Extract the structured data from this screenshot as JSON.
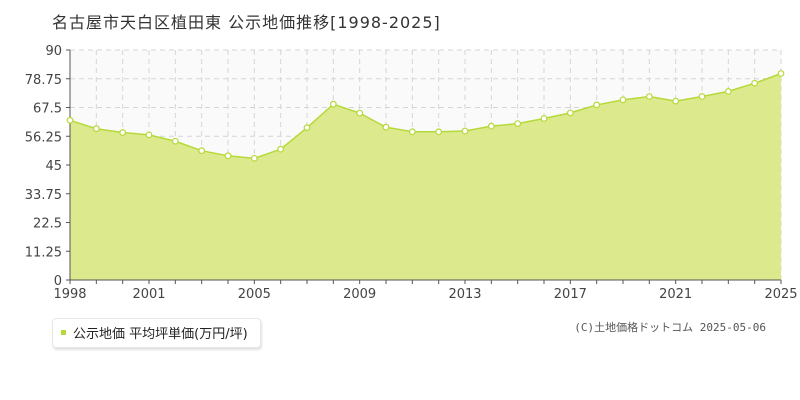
{
  "title": "名古屋市天白区植田東 公示地価推移[1998-2025]",
  "legend": {
    "label": "公示地価 平均坪単価(万円/坪)"
  },
  "copyright": "(C)土地価格ドットコム 2025-05-06",
  "colors": {
    "fill": "#dde98d",
    "line": "#b5d93a",
    "point_fill": "#ffffff",
    "grid": "#d5d5d5"
  },
  "chart_data": {
    "type": "area",
    "title": "名古屋市天白区植田東 公示地価推移[1998-2025]",
    "xlabel": "",
    "ylabel": "",
    "x": [
      1998,
      1999,
      2000,
      2001,
      2002,
      2003,
      2004,
      2005,
      2006,
      2007,
      2008,
      2009,
      2010,
      2011,
      2012,
      2013,
      2014,
      2015,
      2016,
      2017,
      2018,
      2019,
      2020,
      2021,
      2022,
      2023,
      2024,
      2025
    ],
    "series": [
      {
        "name": "公示地価 平均坪単価(万円/坪)",
        "values": [
          62.5,
          59.2,
          57.7,
          56.8,
          54.3,
          50.6,
          48.6,
          47.6,
          51.2,
          59.6,
          68.8,
          65.3,
          59.8,
          58.0,
          58.0,
          58.3,
          60.2,
          61.2,
          63.2,
          65.4,
          68.5,
          70.5,
          71.8,
          70.0,
          71.8,
          73.8,
          77.0,
          80.8
        ]
      }
    ],
    "xlim": [
      1998,
      2025
    ],
    "ylim": [
      0,
      90
    ],
    "yticks": [
      0,
      11.25,
      22.5,
      33.75,
      45,
      56.25,
      67.5,
      78.75,
      90
    ],
    "ytick_labels": [
      "0",
      "11.25",
      "22.5",
      "33.75",
      "45",
      "56.25",
      "67.5",
      "78.75",
      "90"
    ],
    "xtick_labels": [
      "1998",
      "2001",
      "2005",
      "2009",
      "2013",
      "2017",
      "2021",
      "2025"
    ],
    "grid": true,
    "legend_position": "bottom-left"
  }
}
